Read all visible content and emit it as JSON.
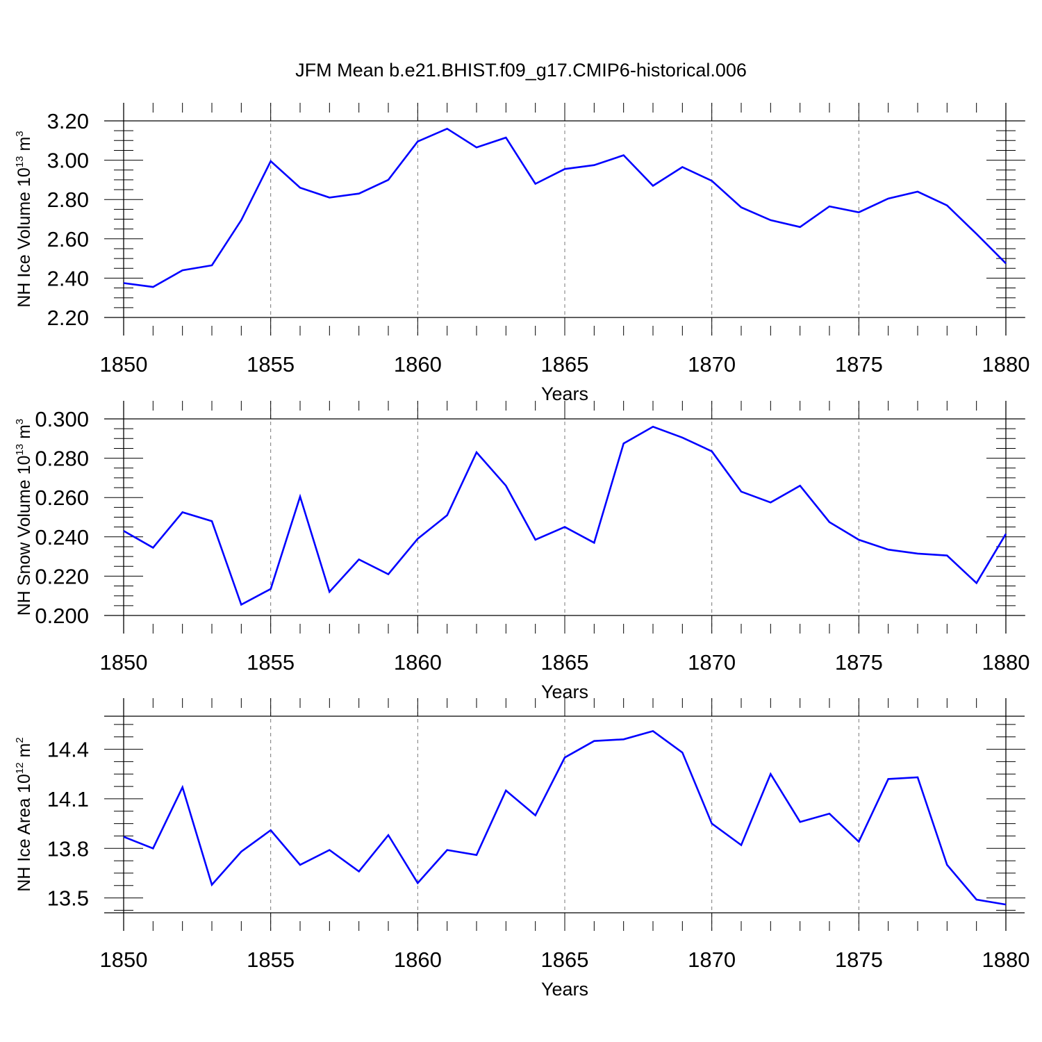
{
  "title": "JFM Mean b.e21.BHIST.f09_g17.CMIP6-historical.006",
  "colors": {
    "line": "#0000ff",
    "axis": "#000000",
    "grid": "#777777"
  },
  "chart_data": [
    {
      "type": "line",
      "ylabel": {
        "main": "NH Ice Volume 10",
        "exp": "13",
        "unit": " m",
        "unit_exp": "3"
      },
      "xlabel": "Years",
      "xlim": [
        1850,
        1880
      ],
      "ylim": [
        2.2,
        3.2
      ],
      "yticks": [
        "2.20",
        "2.40",
        "2.60",
        "2.80",
        "3.00",
        "3.20"
      ],
      "xticks": [
        "1850",
        "1855",
        "1860",
        "1865",
        "1870",
        "1875",
        "1880"
      ],
      "x": [
        1850,
        1851,
        1852,
        1853,
        1854,
        1855,
        1856,
        1857,
        1858,
        1859,
        1860,
        1861,
        1862,
        1863,
        1864,
        1865,
        1866,
        1867,
        1868,
        1869,
        1870,
        1871,
        1872,
        1873,
        1874,
        1875,
        1876,
        1877,
        1878,
        1879,
        1880
      ],
      "values": [
        2.375,
        2.355,
        2.44,
        2.465,
        2.695,
        2.995,
        2.86,
        2.81,
        2.83,
        2.9,
        3.095,
        3.16,
        3.065,
        3.115,
        2.88,
        2.955,
        2.975,
        3.025,
        2.87,
        2.965,
        2.895,
        2.76,
        2.695,
        2.66,
        2.765,
        2.735,
        2.805,
        2.84,
        2.77,
        2.625,
        2.475
      ],
      "grid": "vertical-dashed"
    },
    {
      "type": "line",
      "ylabel": {
        "main": "NH Snow Volume 10",
        "exp": "13",
        "unit": " m",
        "unit_exp": "3"
      },
      "xlabel": "Years",
      "xlim": [
        1850,
        1880
      ],
      "ylim": [
        0.2,
        0.3
      ],
      "yticks": [
        "0.200",
        "0.220",
        "0.240",
        "0.260",
        "0.280",
        "0.300"
      ],
      "xticks": [
        "1850",
        "1855",
        "1860",
        "1865",
        "1870",
        "1875",
        "1880"
      ],
      "x": [
        1850,
        1851,
        1852,
        1853,
        1854,
        1855,
        1856,
        1857,
        1858,
        1859,
        1860,
        1861,
        1862,
        1863,
        1864,
        1865,
        1866,
        1867,
        1868,
        1869,
        1870,
        1871,
        1872,
        1873,
        1874,
        1875,
        1876,
        1877,
        1878,
        1879,
        1880
      ],
      "values": [
        0.243,
        0.2345,
        0.2525,
        0.248,
        0.2055,
        0.2135,
        0.2605,
        0.212,
        0.2285,
        0.221,
        0.239,
        0.251,
        0.283,
        0.266,
        0.2385,
        0.245,
        0.237,
        0.2875,
        0.296,
        0.2905,
        0.2835,
        0.263,
        0.2575,
        0.266,
        0.2475,
        0.2385,
        0.2335,
        0.2315,
        0.2305,
        0.2165,
        0.2415
      ],
      "grid": "vertical-dashed"
    },
    {
      "type": "line",
      "ylabel": {
        "main": "NH Ice Area 10",
        "exp": "12",
        "unit": " m",
        "unit_exp": "2"
      },
      "xlabel": "Years",
      "xlim": [
        1850,
        1880
      ],
      "ylim": [
        13.41,
        14.6
      ],
      "yticks": [
        "13.5",
        "13.8",
        "14.1",
        "14.4"
      ],
      "xticks": [
        "1850",
        "1855",
        "1860",
        "1865",
        "1870",
        "1875",
        "1880"
      ],
      "x": [
        1850,
        1851,
        1852,
        1853,
        1854,
        1855,
        1856,
        1857,
        1858,
        1859,
        1860,
        1861,
        1862,
        1863,
        1864,
        1865,
        1866,
        1867,
        1868,
        1869,
        1870,
        1871,
        1872,
        1873,
        1874,
        1875,
        1876,
        1877,
        1878,
        1879,
        1880
      ],
      "values": [
        13.87,
        13.8,
        14.17,
        13.58,
        13.78,
        13.91,
        13.7,
        13.79,
        13.66,
        13.88,
        13.59,
        13.79,
        13.76,
        14.15,
        14.0,
        14.35,
        14.45,
        14.46,
        14.51,
        14.38,
        13.95,
        13.82,
        14.25,
        13.96,
        14.01,
        13.84,
        14.22,
        14.23,
        13.7,
        13.49,
        13.46
      ],
      "grid": "vertical-dashed"
    }
  ]
}
